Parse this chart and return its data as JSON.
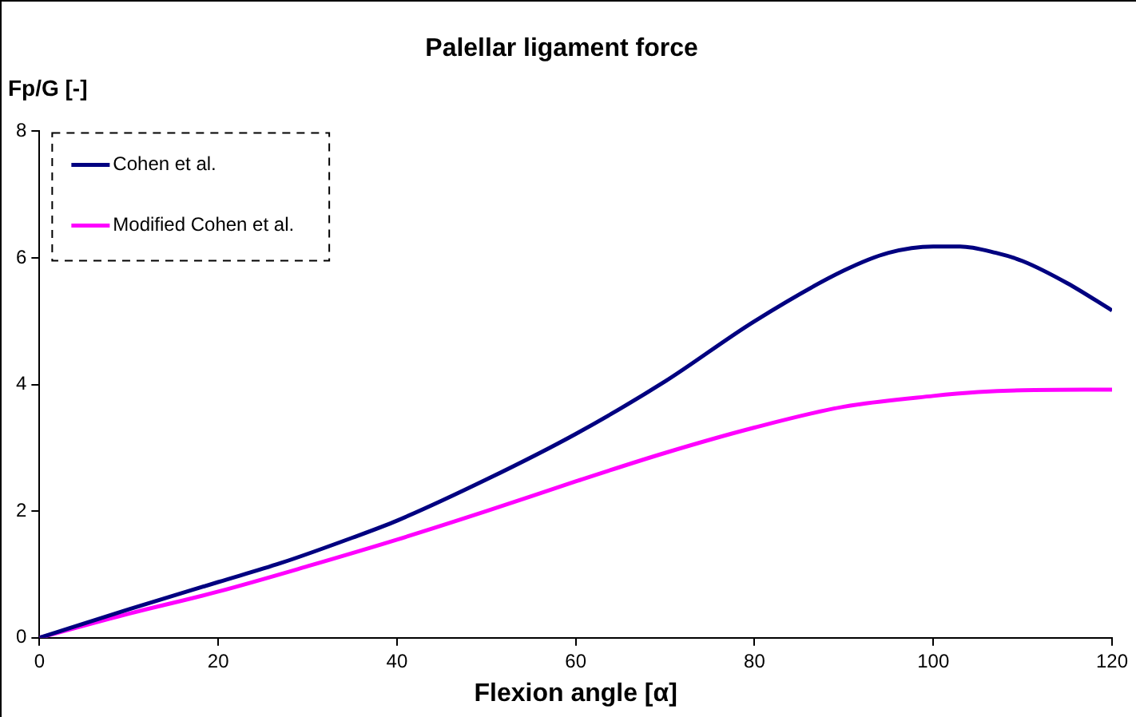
{
  "chart_data": {
    "type": "line",
    "title": "Palellar ligament force",
    "xlabel": "Flexion angle [α]",
    "ylabel": "Fp/G [-]",
    "xlim": [
      0,
      120
    ],
    "xticks": [
      0,
      20,
      40,
      60,
      80,
      100,
      120
    ],
    "ylim": [
      0,
      8
    ],
    "yticks": [
      0,
      2,
      4,
      6,
      8
    ],
    "grid": false,
    "legend": "top left",
    "marker": "none",
    "line_style": "solid",
    "series": [
      {
        "name": "Cohen et al.",
        "color": "#000080",
        "x": [
          0,
          10,
          20,
          27,
          35,
          40,
          50,
          60,
          70,
          80,
          90,
          95,
          100,
          103,
          107,
          110,
          115,
          120
        ],
        "values": [
          0,
          0.45,
          0.88,
          1.18,
          1.58,
          1.85,
          2.5,
          3.22,
          4.05,
          5.0,
          5.8,
          6.08,
          6.18,
          6.18,
          6.08,
          5.95,
          5.6,
          5.17
        ]
      },
      {
        "name": "Modified Cohen et al.",
        "color": "#ff00ff",
        "x": [
          0,
          10,
          20,
          30,
          40,
          50,
          60,
          70,
          80,
          90,
          100,
          105,
          110,
          120
        ],
        "values": [
          0,
          0.38,
          0.73,
          1.13,
          1.55,
          2.0,
          2.47,
          2.92,
          3.32,
          3.65,
          3.82,
          3.88,
          3.91,
          3.92
        ]
      }
    ]
  }
}
